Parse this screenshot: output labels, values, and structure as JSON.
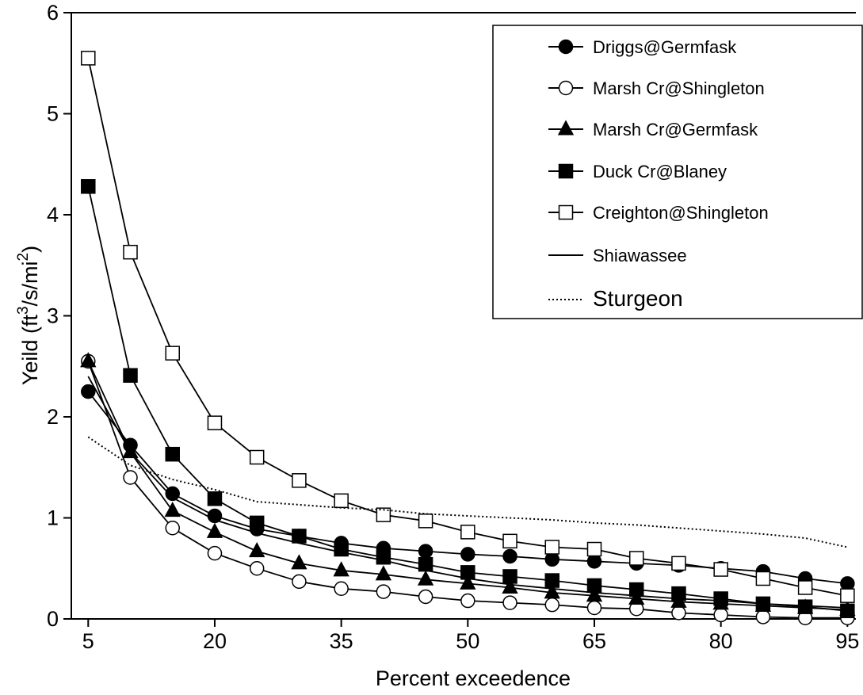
{
  "chart_data": {
    "type": "line",
    "title": "",
    "xlabel": "Percent exceedence",
    "ylabel_main": "Yeild (ft",
    "ylabel_sup1": "3",
    "ylabel_mid": "/s/mi",
    "ylabel_sup2": "2",
    "ylabel_end": ")",
    "xlim": [
      3,
      96
    ],
    "ylim": [
      0,
      6
    ],
    "x_ticks": [
      5,
      20,
      35,
      50,
      65,
      80,
      95
    ],
    "y_ticks": [
      0,
      1,
      2,
      3,
      4,
      5,
      6
    ],
    "legend_position": "top-right",
    "x": [
      5,
      10,
      15,
      20,
      25,
      30,
      35,
      40,
      45,
      50,
      55,
      60,
      65,
      70,
      75,
      80,
      85,
      90,
      95
    ],
    "series": [
      {
        "name": "Driggs@Germfask",
        "marker": "filled-circle",
        "line": "solid",
        "values": [
          2.25,
          1.72,
          1.24,
          1.02,
          0.89,
          0.82,
          0.75,
          0.7,
          0.67,
          0.64,
          0.62,
          0.59,
          0.57,
          0.55,
          0.53,
          0.5,
          0.47,
          0.4,
          0.35
        ]
      },
      {
        "name": "Marsh Cr@Shingleton",
        "marker": "open-circle",
        "line": "solid",
        "values": [
          2.55,
          1.4,
          0.9,
          0.65,
          0.5,
          0.37,
          0.3,
          0.27,
          0.22,
          0.18,
          0.16,
          0.14,
          0.11,
          0.1,
          0.06,
          0.04,
          0.02,
          0.01,
          0.01
        ]
      },
      {
        "name": "Marsh Cr@Germfask",
        "marker": "filled-triangle",
        "line": "solid",
        "values": [
          2.55,
          1.65,
          1.07,
          0.86,
          0.67,
          0.55,
          0.48,
          0.44,
          0.39,
          0.35,
          0.31,
          0.26,
          0.23,
          0.2,
          0.17,
          0.15,
          0.13,
          0.11,
          0.09
        ]
      },
      {
        "name": "Duck Cr@Blaney",
        "marker": "filled-square",
        "line": "solid",
        "values": [
          4.28,
          2.41,
          1.63,
          1.19,
          0.95,
          0.82,
          0.69,
          0.61,
          0.54,
          0.46,
          0.42,
          0.38,
          0.33,
          0.29,
          0.25,
          0.2,
          0.15,
          0.12,
          0.08
        ]
      },
      {
        "name": "Creighton@Shingleton",
        "marker": "open-square",
        "line": "solid",
        "values": [
          5.55,
          3.63,
          2.63,
          1.94,
          1.6,
          1.37,
          1.17,
          1.03,
          0.97,
          0.86,
          0.77,
          0.71,
          0.69,
          0.6,
          0.55,
          0.49,
          0.4,
          0.31,
          0.23
        ]
      },
      {
        "name": "Shiawassee",
        "marker": "none",
        "line": "solid",
        "values": [
          2.4,
          1.65,
          1.2,
          0.98,
          0.85,
          0.75,
          0.66,
          0.58,
          0.48,
          0.4,
          0.34,
          0.3,
          0.26,
          0.23,
          0.2,
          0.18,
          0.15,
          0.13,
          0.11
        ]
      },
      {
        "name": "Sturgeon",
        "marker": "none",
        "line": "dotted",
        "values": [
          1.8,
          1.52,
          1.38,
          1.28,
          1.16,
          1.13,
          1.1,
          1.08,
          1.04,
          1.02,
          1.0,
          0.98,
          0.95,
          0.93,
          0.9,
          0.87,
          0.84,
          0.8,
          0.71
        ]
      }
    ]
  }
}
